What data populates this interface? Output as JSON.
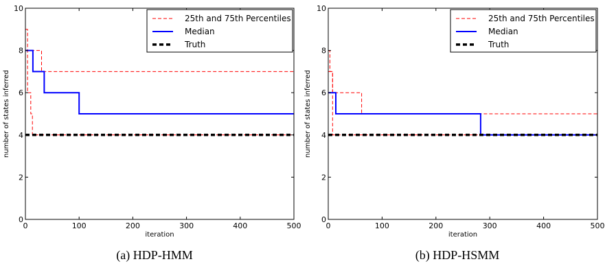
{
  "chart_data": [
    {
      "type": "line",
      "caption": "(a)  HDP-HMM",
      "xlabel": "iteration",
      "ylabel": "number of states inferred",
      "xlim": [
        0,
        500
      ],
      "ylim": [
        0,
        10
      ],
      "xticks": [
        "0",
        "100",
        "200",
        "300",
        "400",
        "500"
      ],
      "yticks": [
        "0",
        "2",
        "4",
        "6",
        "8",
        "10"
      ],
      "legend_position": "top-right",
      "series": [
        {
          "name": "25th and 75th Percentiles",
          "style": "dashed",
          "color": "#ff0000",
          "x": [
            0,
            4,
            4,
            10,
            10,
            13,
            13,
            500
          ],
          "y": [
            9,
            9,
            6,
            6,
            5,
            5,
            4,
            4
          ]
        },
        {
          "name": "",
          "style": "dashed",
          "color": "#ff0000",
          "x": [
            0,
            30,
            30,
            500
          ],
          "y": [
            8,
            8,
            7,
            7
          ]
        },
        {
          "name": "Median",
          "style": "solid",
          "color": "#0000ff",
          "x": [
            0,
            14,
            14,
            35,
            35,
            100,
            100,
            500
          ],
          "y": [
            8,
            8,
            7,
            7,
            6,
            6,
            5,
            5
          ]
        },
        {
          "name": "Truth",
          "style": "thick-dashed",
          "color": "#000000",
          "x": [
            0,
            500
          ],
          "y": [
            4,
            4
          ]
        }
      ]
    },
    {
      "type": "line",
      "caption": "(b)  HDP-HSMM",
      "xlabel": "iteration",
      "ylabel": "number of states inferred",
      "xlim": [
        0,
        500
      ],
      "ylim": [
        0,
        10
      ],
      "xticks": [
        "0",
        "100",
        "200",
        "300",
        "400",
        "500"
      ],
      "yticks": [
        "0",
        "2",
        "4",
        "6",
        "8",
        "10"
      ],
      "legend_position": "top-right",
      "series": [
        {
          "name": "25th and 75th Percentiles",
          "style": "dashed",
          "color": "#ff0000",
          "x": [
            0,
            3,
            3,
            8,
            8,
            500
          ],
          "y": [
            8,
            8,
            7,
            7,
            4,
            4
          ]
        },
        {
          "name": "",
          "style": "dashed",
          "color": "#ff0000",
          "x": [
            0,
            8,
            8,
            62,
            62,
            500
          ],
          "y": [
            7,
            7,
            6,
            6,
            5,
            5
          ]
        },
        {
          "name": "Median",
          "style": "solid",
          "color": "#0000ff",
          "x": [
            0,
            14,
            14,
            283,
            283,
            500
          ],
          "y": [
            6,
            6,
            5,
            5,
            4,
            4
          ]
        },
        {
          "name": "Truth",
          "style": "thick-dashed",
          "color": "#000000",
          "x": [
            0,
            500
          ],
          "y": [
            4,
            4
          ]
        }
      ]
    }
  ]
}
